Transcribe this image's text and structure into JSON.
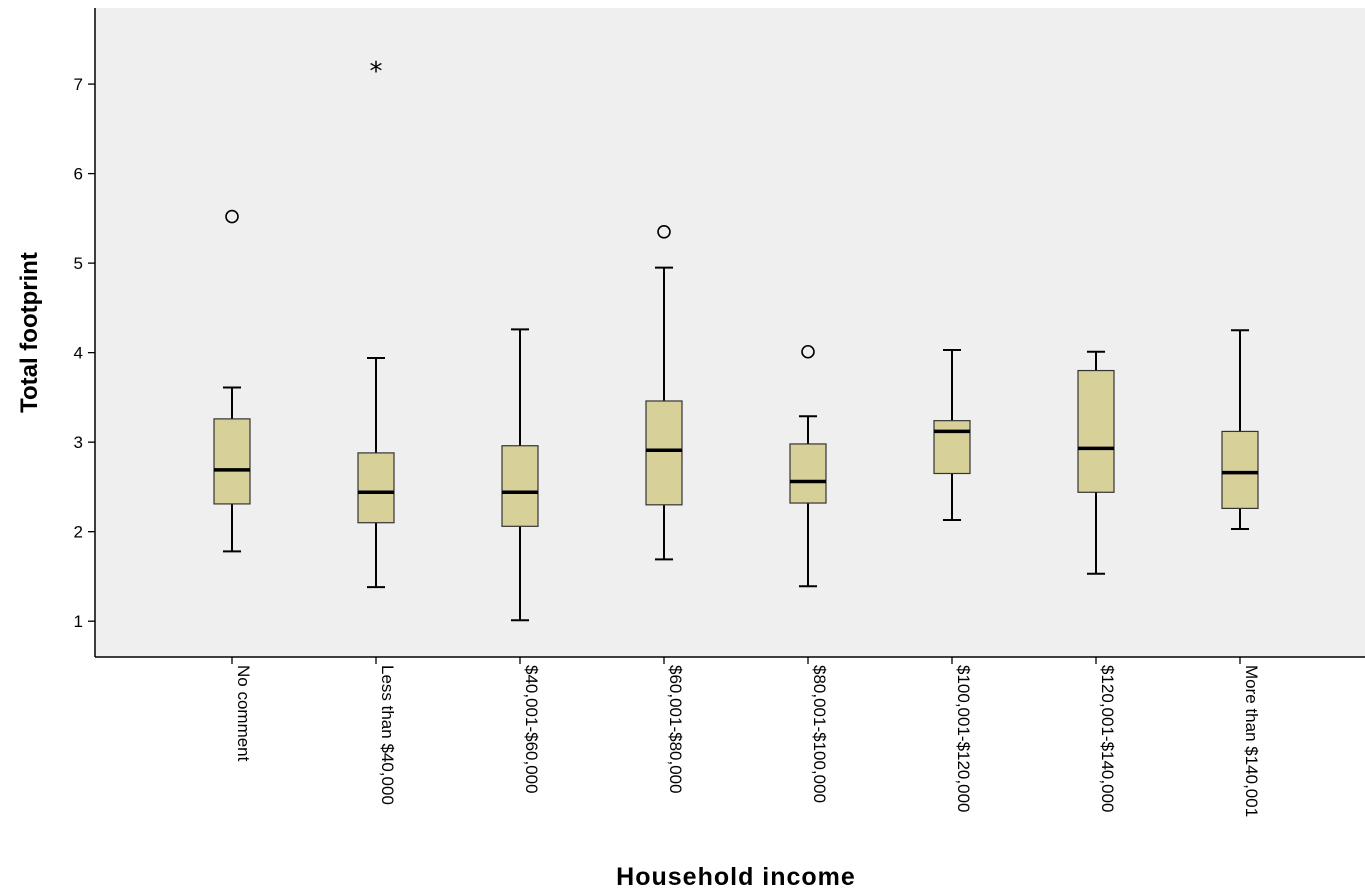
{
  "chart_data": {
    "type": "boxplot",
    "xlabel": "Household income",
    "ylabel": "Total footprint",
    "ylim": [
      0.6,
      7.85
    ],
    "yticks": [
      "1",
      "2",
      "3",
      "4",
      "5",
      "6",
      "7"
    ],
    "grid": false,
    "legend": "none",
    "colors": {
      "plot_bg": "#efefef",
      "box_fill": "#d7d099",
      "line": "#000000"
    },
    "categories": [
      "No comment",
      "Less than $40,000",
      "$40,001-$60,000",
      "$60,001-$80,000",
      "$80,001-$100,000",
      "$100,001-$120,000",
      "$120,001-$140,000",
      "More than $140,001"
    ],
    "boxes": [
      {
        "whisker_low": 1.78,
        "q1": 2.31,
        "median": 2.69,
        "q3": 3.26,
        "whisker_high": 3.61,
        "outliers": [
          {
            "value": 5.52,
            "kind": "circle"
          }
        ]
      },
      {
        "whisker_low": 1.38,
        "q1": 2.1,
        "median": 2.44,
        "q3": 2.88,
        "whisker_high": 3.94,
        "outliers": [
          {
            "value": 7.16,
            "kind": "star"
          }
        ]
      },
      {
        "whisker_low": 1.01,
        "q1": 2.06,
        "median": 2.44,
        "q3": 2.96,
        "whisker_high": 4.26,
        "outliers": []
      },
      {
        "whisker_low": 1.69,
        "q1": 2.3,
        "median": 2.91,
        "q3": 3.46,
        "whisker_high": 4.95,
        "outliers": [
          {
            "value": 5.35,
            "kind": "circle"
          }
        ]
      },
      {
        "whisker_low": 1.39,
        "q1": 2.32,
        "median": 2.56,
        "q3": 2.98,
        "whisker_high": 3.29,
        "outliers": [
          {
            "value": 4.01,
            "kind": "circle"
          }
        ]
      },
      {
        "whisker_low": 2.13,
        "q1": 2.65,
        "median": 3.12,
        "q3": 3.24,
        "whisker_high": 4.03,
        "outliers": []
      },
      {
        "whisker_low": 1.53,
        "q1": 2.44,
        "median": 2.93,
        "q3": 3.8,
        "whisker_high": 4.01,
        "outliers": []
      },
      {
        "whisker_low": 2.03,
        "q1": 2.26,
        "median": 2.66,
        "q3": 3.12,
        "whisker_high": 4.25,
        "outliers": []
      }
    ]
  }
}
